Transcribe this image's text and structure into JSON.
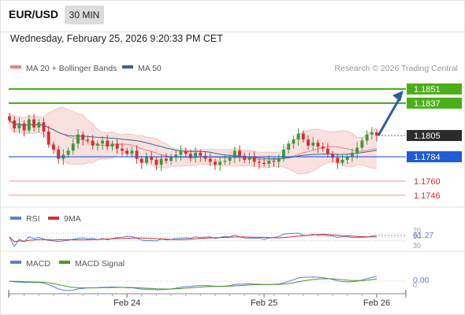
{
  "header": {
    "pair": "EUR/USD",
    "timeframe": "30 MIN",
    "datetime": "Wednesday, February 25, 2026 9:20:33 PM CET"
  },
  "legend": {
    "ma20": "MA 20 + Bollinger Bands",
    "ma50": "MA 50",
    "credit": "Research © 2026 Trading Central"
  },
  "colors": {
    "candle_up": "#3a9a3a",
    "candle_down": "#d32f2f",
    "bollinger_fill": "#fbe0e0",
    "ma20": "#f08080",
    "ma50": "#33669a",
    "target_line": "#4caf1a",
    "support_line": "#1f5bd6",
    "weak_line": "#f3a9a9",
    "rsi": "#5a7fd8",
    "rsi_ma": "#d32f2f",
    "macd": "#5a7fd8",
    "macd_signal": "#4a9c1a"
  },
  "chart_data": {
    "type": "candlestick",
    "ylim": [
      1.1735,
      1.1865
    ],
    "x_ticks": [
      "Feb 24",
      "Feb 25",
      "Feb 26"
    ],
    "levels": [
      {
        "label": "1.1851",
        "value": 1.1851,
        "kind": "target"
      },
      {
        "label": "1.1837",
        "value": 1.1837,
        "kind": "target"
      },
      {
        "label": "1.1805",
        "value": 1.1805,
        "kind": "last"
      },
      {
        "label": "1.1784",
        "value": 1.1784,
        "kind": "support"
      },
      {
        "label": "1.1760",
        "value": 1.176,
        "kind": "weak"
      },
      {
        "label": "1.1746",
        "value": 1.1746,
        "kind": "weak"
      }
    ],
    "close": [
      1.182,
      1.1812,
      1.1817,
      1.181,
      1.1821,
      1.1813,
      1.1818,
      1.1809,
      1.1796,
      1.1791,
      1.1782,
      1.1786,
      1.179,
      1.1797,
      1.1806,
      1.1801,
      1.18,
      1.1795,
      1.1797,
      1.18,
      1.1794,
      1.1797,
      1.1792,
      1.179,
      1.1787,
      1.179,
      1.1782,
      1.1778,
      1.1784,
      1.1781,
      1.1776,
      1.1782,
      1.178,
      1.1784,
      1.1786,
      1.179,
      1.1787,
      1.1783,
      1.1788,
      1.1785,
      1.1782,
      1.1779,
      1.1776,
      1.1779,
      1.178,
      1.1783,
      1.179,
      1.1785,
      1.1781,
      1.1784,
      1.1779,
      1.1778,
      1.1777,
      1.178,
      1.1779,
      1.1782,
      1.1791,
      1.1797,
      1.1801,
      1.1807,
      1.1801,
      1.1795,
      1.1798,
      1.1794,
      1.1792,
      1.1787,
      1.1783,
      1.1778,
      1.1781,
      1.1784,
      1.1788,
      1.1793,
      1.18,
      1.1806,
      1.1808,
      1.1805
    ],
    "rsi": {
      "name": "RSI",
      "ma_name": "9MA",
      "value_label": "61.27",
      "levels": [
        "70",
        "50",
        "30"
      ]
    },
    "macd": {
      "name": "MACD",
      "signal_name": "MACD Signal",
      "value_label": "0.00",
      "zero_label": "0"
    }
  }
}
